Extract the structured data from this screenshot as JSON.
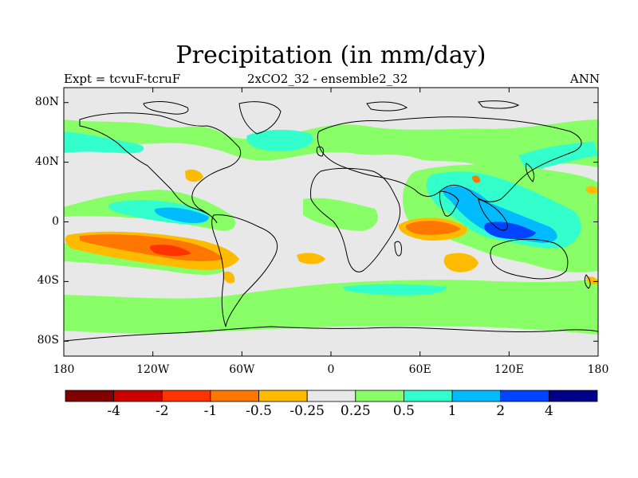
{
  "title": "Precipitation (in mm/day)",
  "subtitle_left": "Expt = tcvuF-tcruF",
  "subtitle_center": "2xCO2_32 - ensemble2_32",
  "subtitle_right": "ANN",
  "map": {
    "projection": "cylindrical equidistant",
    "lon_range": [
      -180,
      180
    ],
    "lat_range": [
      -90,
      90
    ],
    "land_background": "#e8e8e8",
    "x_ticks": [
      {
        "label": "180",
        "lon": -180
      },
      {
        "label": "120W",
        "lon": -120
      },
      {
        "label": "60W",
        "lon": -60
      },
      {
        "label": "0",
        "lon": 0
      },
      {
        "label": "60E",
        "lon": 60
      },
      {
        "label": "120E",
        "lon": 120
      },
      {
        "label": "180",
        "lon": 180
      }
    ],
    "y_ticks": [
      {
        "label": "80N",
        "lat": 80
      },
      {
        "label": "40N",
        "lat": 40
      },
      {
        "label": "0",
        "lat": 0
      },
      {
        "label": "40S",
        "lat": -40
      },
      {
        "label": "80S",
        "lat": -80
      }
    ]
  },
  "colorbar": {
    "colors": [
      "#800000",
      "#cc0000",
      "#ff3300",
      "#ff7700",
      "#ffbb00",
      "#e8e8e8",
      "#88ff66",
      "#33ffcc",
      "#00bbff",
      "#0044ff",
      "#000088"
    ],
    "labels": [
      "-4",
      "-2",
      "-1",
      "-0.5",
      "-0.25",
      "0.25",
      "0.5",
      "1",
      "2",
      "4"
    ]
  }
}
